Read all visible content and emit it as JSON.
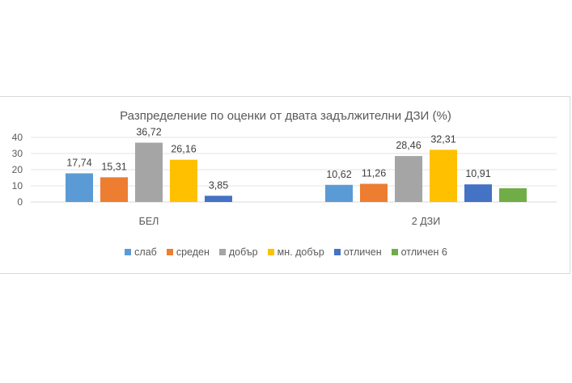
{
  "chart_data": {
    "type": "bar",
    "title": "Разпределение по оценки от двата задължителни ДЗИ (%)",
    "categories": [
      "БЕЛ",
      "2 ДЗИ"
    ],
    "ylim": [
      0,
      40
    ],
    "yticks": [
      "0",
      "10",
      "20",
      "30",
      "40"
    ],
    "grid": true,
    "legend_position": "bottom",
    "series": [
      {
        "name": "слаб",
        "color": "#5b9bd5",
        "values": [
          17.74,
          10.62
        ],
        "labels": [
          "17,74",
          "10,62"
        ]
      },
      {
        "name": "среден",
        "color": "#ed7d31",
        "values": [
          15.31,
          11.26
        ],
        "labels": [
          "15,31",
          "11,26"
        ]
      },
      {
        "name": "добър",
        "color": "#a5a5a5",
        "values": [
          36.72,
          28.46
        ],
        "labels": [
          "36,72",
          "28,46"
        ]
      },
      {
        "name": "мн. добър",
        "color": "#ffc000",
        "values": [
          26.16,
          32.31
        ],
        "labels": [
          "26,16",
          "32,31"
        ]
      },
      {
        "name": "отличен",
        "color": "#4472c4",
        "values": [
          3.85,
          10.91
        ],
        "labels": [
          "3,85",
          "10,91"
        ]
      },
      {
        "name": "отличен 6",
        "color": "#70ad47",
        "values": [
          null,
          8.5
        ],
        "labels": [
          "",
          ""
        ]
      }
    ]
  }
}
